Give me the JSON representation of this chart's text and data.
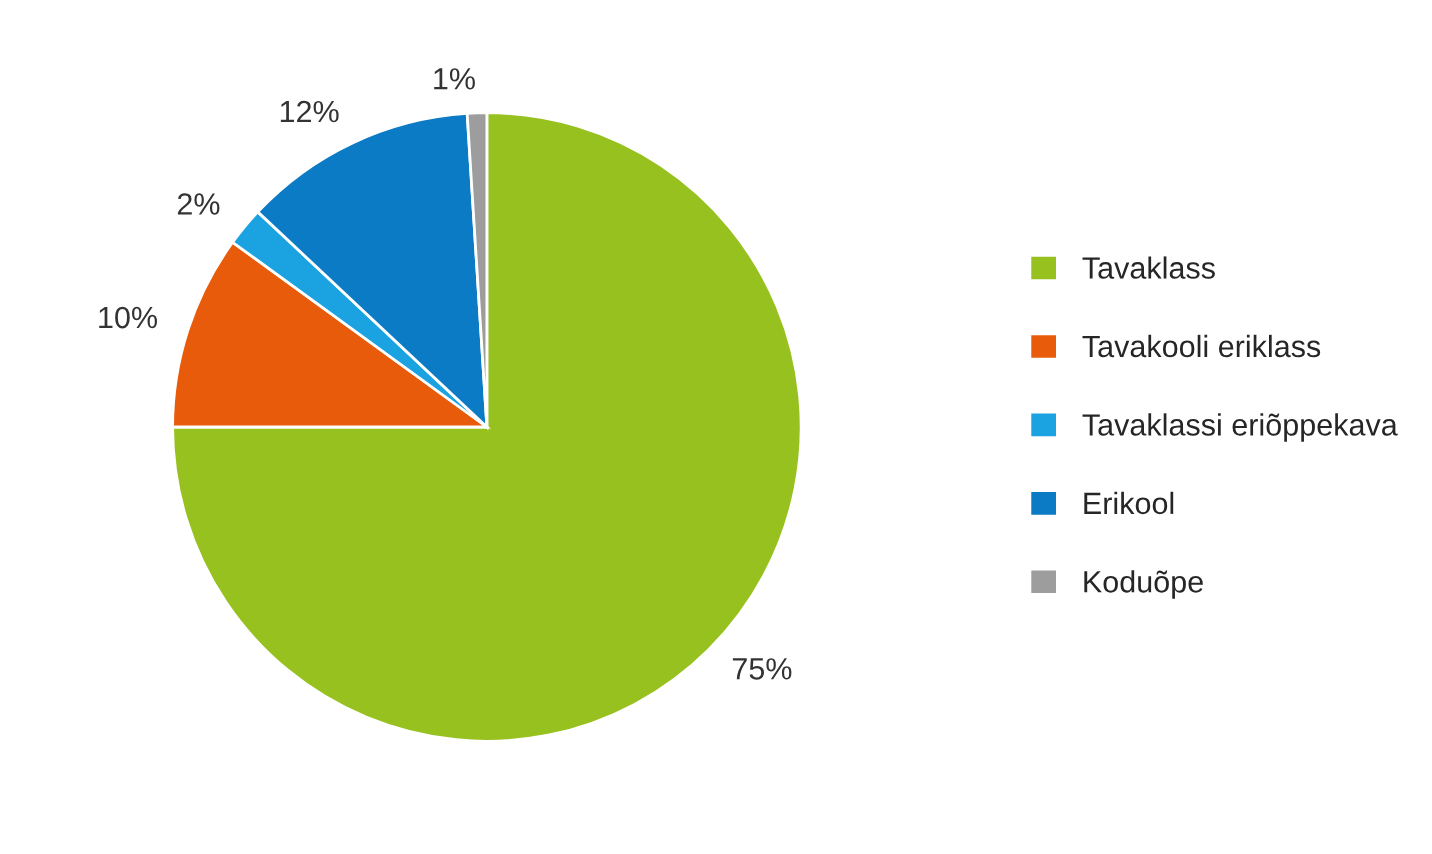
{
  "chart_data": {
    "type": "pie",
    "categories": [
      "Tavaklass",
      "Tavakooli eriklass",
      "Tavaklassi eriõppekava",
      "Erikool",
      "Koduõpe"
    ],
    "values": [
      75,
      10,
      2,
      12,
      1
    ],
    "colors": [
      "#97c11f",
      "#e85b0a",
      "#1aa3e0",
      "#0a7bc4",
      "#9d9d9d"
    ],
    "value_labels": [
      "75%",
      "10%",
      "2%",
      "12%",
      "1%"
    ],
    "legend": "right"
  }
}
